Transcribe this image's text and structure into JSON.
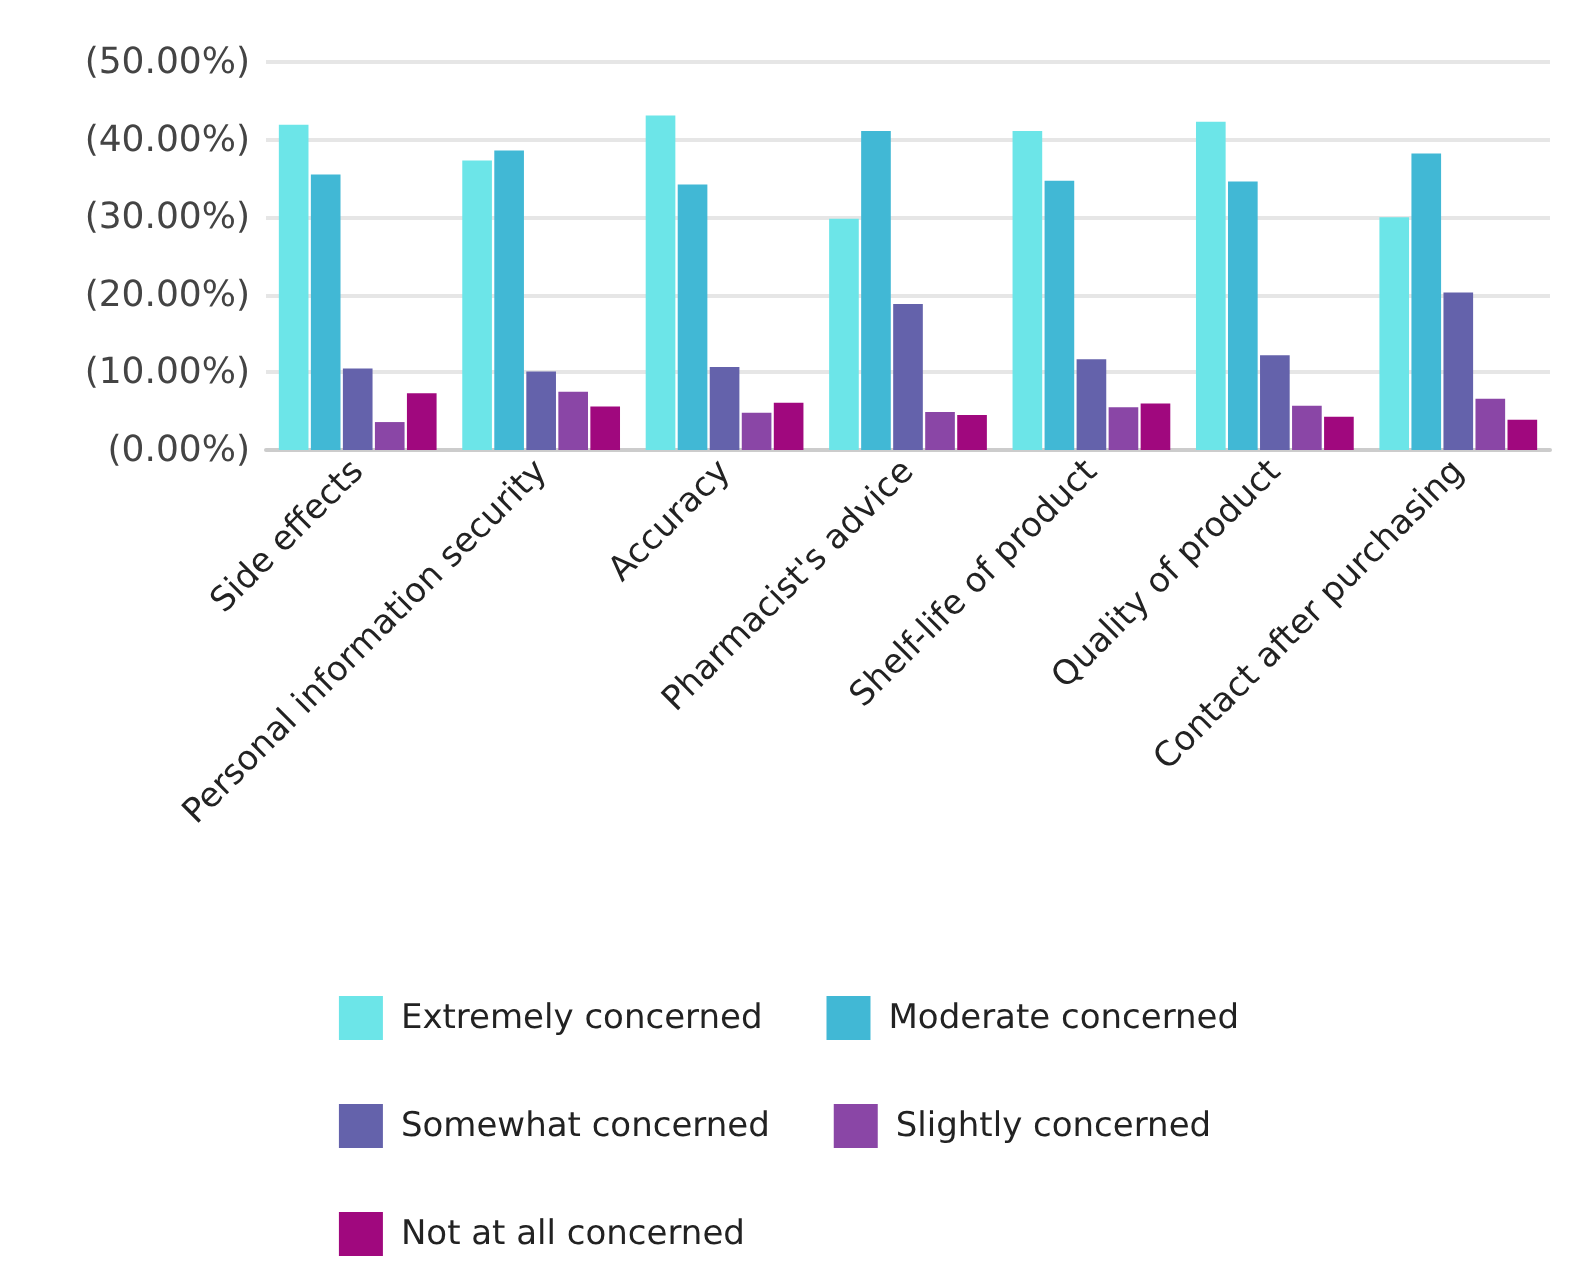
{
  "chart_data": {
    "type": "bar",
    "categories": [
      "Side effects",
      "Personal information security",
      "Accuracy",
      "Pharmacist's advice",
      "Shelf-life of product",
      "Quality of product",
      "Contact after purchasing"
    ],
    "series": [
      {
        "name": "Extremely concerned",
        "color": "#6ce5e8",
        "values": [
          41.9,
          37.3,
          43.1,
          29.8,
          41.1,
          42.3,
          30.0
        ]
      },
      {
        "name": "Moderate concerned",
        "color": "#41b8d5",
        "values": [
          35.5,
          38.6,
          34.2,
          41.1,
          34.7,
          34.6,
          38.2
        ]
      },
      {
        "name": "Somewhat concerned",
        "color": "#6462ab",
        "values": [
          10.5,
          10.1,
          10.7,
          18.8,
          11.7,
          12.2,
          20.3
        ]
      },
      {
        "name": "Slightly concerned",
        "color": "#8a46a6",
        "values": [
          3.6,
          7.5,
          4.8,
          4.9,
          5.5,
          5.7,
          6.6
        ]
      },
      {
        "name": "Not at all concerned",
        "color": "#a0087e",
        "values": [
          7.3,
          5.6,
          6.1,
          4.5,
          6.0,
          4.3,
          3.9
        ]
      }
    ],
    "ylim": [
      0,
      50
    ],
    "yticks": [
      {
        "value": 0,
        "label": "(0.00%)"
      },
      {
        "value": 10,
        "label": "(10.00%)"
      },
      {
        "value": 20,
        "label": "(20.00%)"
      },
      {
        "value": 30,
        "label": "(30.00%)"
      },
      {
        "value": 40,
        "label": "(40.00%)"
      },
      {
        "value": 50,
        "label": "(50.00%)"
      }
    ],
    "grid": "y",
    "legend": "bottom"
  }
}
